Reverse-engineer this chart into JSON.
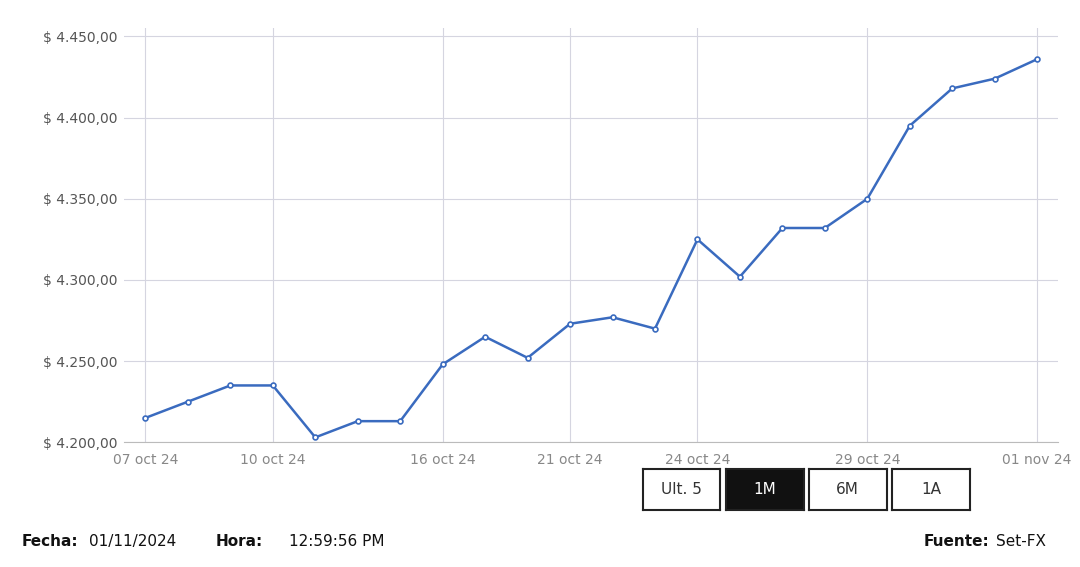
{
  "y_values": [
    4215,
    4225,
    4235,
    4235,
    4203,
    4213,
    4213,
    4248,
    4265,
    4252,
    4273,
    4277,
    4270,
    4325,
    4302,
    4332,
    4332,
    4350,
    4395,
    4418,
    4424,
    4436
  ],
  "x_coords": [
    0,
    1,
    2,
    3,
    4,
    5,
    6,
    7,
    8,
    9,
    10,
    11,
    12,
    13,
    14,
    15,
    16,
    17,
    18,
    19,
    20,
    21
  ],
  "x_tick_map_keys": [
    "07 oct 24",
    "10 oct 24",
    "16 oct 24",
    "21 oct 24",
    "24 oct 24",
    "29 oct 24",
    "01 nov 24"
  ],
  "x_tick_map_vals": [
    0,
    3,
    7,
    10,
    13,
    17,
    21
  ],
  "ylim": [
    4200,
    4455
  ],
  "yticks": [
    4200,
    4250,
    4300,
    4350,
    4400,
    4450
  ],
  "line_color": "#3a6bbf",
  "marker_color": "#ffffff",
  "marker_edge_color": "#3a6bbf",
  "background_color": "#ffffff",
  "grid_color": "#d5d5e0",
  "fecha_label": "Fecha:",
  "fecha_value": "01/11/2024",
  "hora_label": "Hora:",
  "hora_value": "12:59:56 PM",
  "fuente_label": "Fuente:",
  "fuente_value": "Set-FX",
  "buttons": [
    "Ult. 5",
    "1M",
    "6M",
    "1A"
  ],
  "active_button": "1M",
  "xlim": [
    -0.5,
    21.5
  ]
}
